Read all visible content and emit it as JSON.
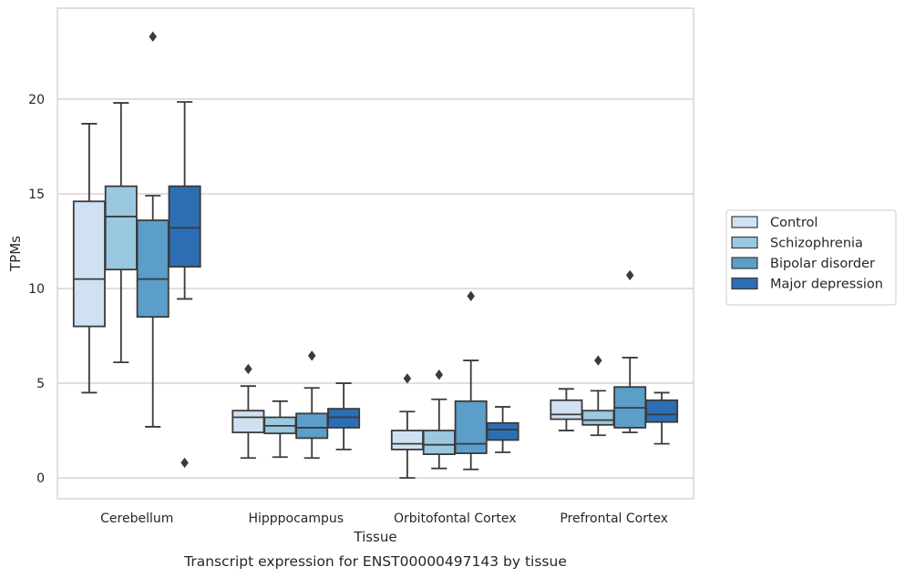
{
  "chart_data": {
    "type": "box",
    "title": "",
    "caption": "Transcript expression for ENST00000497143 by tissue",
    "xlabel": "Tissue",
    "ylabel": "TPMs",
    "ylim": [
      -1.1,
      24.8
    ],
    "yticks": [
      0,
      5,
      10,
      15,
      20
    ],
    "grid": "horizontal",
    "legend_position": "right",
    "categories": [
      "Cerebellum",
      "Hipppocampus",
      "Orbitofontal Cortex",
      "Prefrontal Cortex"
    ],
    "series": [
      {
        "name": "Control",
        "color": "#d0e1f2",
        "boxes": [
          {
            "whisker_low": 4.5,
            "q1": 8.0,
            "median": 10.5,
            "q3": 14.6,
            "whisker_high": 18.7,
            "outliers": []
          },
          {
            "whisker_low": 1.05,
            "q1": 2.4,
            "median": 3.2,
            "q3": 3.55,
            "whisker_high": 4.85,
            "outliers": [
              5.75
            ]
          },
          {
            "whisker_low": 0.0,
            "q1": 1.5,
            "median": 1.8,
            "q3": 2.5,
            "whisker_high": 3.5,
            "outliers": [
              5.25
            ]
          },
          {
            "whisker_low": 2.5,
            "q1": 3.1,
            "median": 3.35,
            "q3": 4.1,
            "whisker_high": 4.7,
            "outliers": []
          }
        ]
      },
      {
        "name": "Schizophrenia",
        "color": "#9ac8e0",
        "boxes": [
          {
            "whisker_low": 6.1,
            "q1": 11.0,
            "median": 13.8,
            "q3": 15.4,
            "whisker_high": 19.8,
            "outliers": []
          },
          {
            "whisker_low": 1.1,
            "q1": 2.35,
            "median": 2.75,
            "q3": 3.2,
            "whisker_high": 4.05,
            "outliers": []
          },
          {
            "whisker_low": 0.5,
            "q1": 1.25,
            "median": 1.75,
            "q3": 2.5,
            "whisker_high": 4.15,
            "outliers": [
              5.45
            ]
          },
          {
            "whisker_low": 2.25,
            "q1": 2.8,
            "median": 3.05,
            "q3": 3.55,
            "whisker_high": 4.6,
            "outliers": [
              6.2
            ]
          }
        ]
      },
      {
        "name": "Bipolar disorder",
        "color": "#5a9ec9",
        "boxes": [
          {
            "whisker_low": 2.7,
            "q1": 8.5,
            "median": 10.5,
            "q3": 13.6,
            "whisker_high": 14.9,
            "outliers": [
              23.3
            ]
          },
          {
            "whisker_low": 1.05,
            "q1": 2.1,
            "median": 2.65,
            "q3": 3.4,
            "whisker_high": 4.75,
            "outliers": [
              6.45
            ]
          },
          {
            "whisker_low": 0.45,
            "q1": 1.3,
            "median": 1.8,
            "q3": 4.05,
            "whisker_high": 6.2,
            "outliers": [
              9.6
            ]
          },
          {
            "whisker_low": 2.4,
            "q1": 2.65,
            "median": 3.7,
            "q3": 4.8,
            "whisker_high": 6.35,
            "outliers": [
              10.7
            ]
          }
        ]
      },
      {
        "name": "Major depression",
        "color": "#2c6eb4",
        "boxes": [
          {
            "whisker_low": 9.45,
            "q1": 11.15,
            "median": 13.2,
            "q3": 15.4,
            "whisker_high": 19.85,
            "outliers": [
              0.8
            ]
          },
          {
            "whisker_low": 1.5,
            "q1": 2.65,
            "median": 3.2,
            "q3": 3.65,
            "whisker_high": 5.0,
            "outliers": []
          },
          {
            "whisker_low": 1.35,
            "q1": 2.0,
            "median": 2.55,
            "q3": 2.9,
            "whisker_high": 3.75,
            "outliers": []
          },
          {
            "whisker_low": 1.8,
            "q1": 2.95,
            "median": 3.35,
            "q3": 4.1,
            "whisker_high": 4.5,
            "outliers": []
          }
        ]
      }
    ]
  }
}
